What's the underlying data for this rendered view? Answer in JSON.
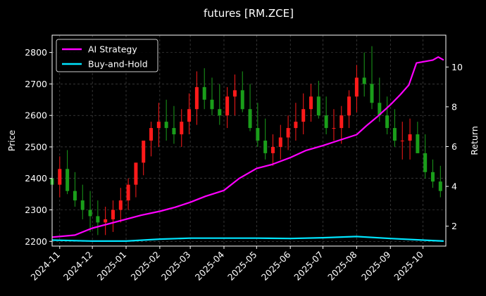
{
  "chart_data": {
    "type": "line",
    "title": "futures [RM.ZCE]",
    "xlabel": "",
    "ylabel_left": "Price",
    "ylabel_right": "Return",
    "xlim": [
      "2024-10-25",
      "2025-10-22"
    ],
    "ylim_left": [
      2185,
      2855
    ],
    "ylim_right": [
      1.0,
      11.6
    ],
    "grid": true,
    "legend_position": "top-left",
    "colors": {
      "background": "#000000",
      "ai_strategy": "#ff00ff",
      "buy_and_hold": "#00e5ff",
      "candle_up": "#ff1a1a",
      "candle_down": "#1a9e1a",
      "grid": "#555555"
    },
    "x_ticks": [
      "2024-11",
      "2024-12",
      "2025-01",
      "2025-02",
      "2025-03",
      "2025-04",
      "2025-05",
      "2025-06",
      "2025-07",
      "2025-08",
      "2025-09",
      "2025-10"
    ],
    "y_ticks_left": [
      2200,
      2300,
      2400,
      2500,
      2600,
      2700,
      2800
    ],
    "y_ticks_right": [
      2,
      4,
      6,
      8,
      10
    ],
    "legend": [
      "AI Strategy",
      "Buy-and-Hold"
    ],
    "price_candles": {
      "x": [
        "2024-10-25",
        "2024-11-01",
        "2024-11-08",
        "2024-11-15",
        "2024-11-22",
        "2024-11-29",
        "2024-12-06",
        "2024-12-13",
        "2024-12-20",
        "2024-12-27",
        "2025-01-03",
        "2025-01-10",
        "2025-01-17",
        "2025-01-24",
        "2025-01-31",
        "2025-02-07",
        "2025-02-14",
        "2025-02-21",
        "2025-02-28",
        "2025-03-07",
        "2025-03-14",
        "2025-03-21",
        "2025-03-28",
        "2025-04-04",
        "2025-04-11",
        "2025-04-18",
        "2025-04-25",
        "2025-05-02",
        "2025-05-09",
        "2025-05-16",
        "2025-05-23",
        "2025-05-30",
        "2025-06-06",
        "2025-06-13",
        "2025-06-20",
        "2025-06-27",
        "2025-07-04",
        "2025-07-11",
        "2025-07-18",
        "2025-07-25",
        "2025-08-01",
        "2025-08-08",
        "2025-08-15",
        "2025-08-22",
        "2025-08-29",
        "2025-09-05",
        "2025-09-12",
        "2025-09-19",
        "2025-09-26",
        "2025-10-03",
        "2025-10-10",
        "2025-10-17"
      ],
      "open": [
        2400,
        2380,
        2430,
        2360,
        2330,
        2300,
        2280,
        2260,
        2270,
        2300,
        2330,
        2380,
        2450,
        2520,
        2560,
        2580,
        2560,
        2540,
        2580,
        2620,
        2690,
        2650,
        2620,
        2600,
        2660,
        2680,
        2620,
        2560,
        2520,
        2480,
        2500,
        2530,
        2560,
        2580,
        2620,
        2660,
        2600,
        2560,
        2560,
        2600,
        2660,
        2720,
        2700,
        2640,
        2600,
        2560,
        2520,
        2520,
        2540,
        2480,
        2420,
        2390
      ],
      "high": [
        2450,
        2470,
        2490,
        2420,
        2380,
        2360,
        2330,
        2310,
        2330,
        2370,
        2400,
        2450,
        2520,
        2580,
        2640,
        2650,
        2630,
        2620,
        2670,
        2740,
        2750,
        2720,
        2700,
        2690,
        2730,
        2740,
        2700,
        2640,
        2590,
        2540,
        2570,
        2600,
        2640,
        2670,
        2700,
        2710,
        2660,
        2620,
        2630,
        2680,
        2760,
        2800,
        2820,
        2720,
        2660,
        2620,
        2580,
        2590,
        2580,
        2540,
        2460,
        2440
      ],
      "low": [
        2360,
        2340,
        2350,
        2310,
        2270,
        2230,
        2220,
        2220,
        2230,
        2260,
        2300,
        2340,
        2410,
        2470,
        2500,
        2520,
        2510,
        2500,
        2540,
        2570,
        2620,
        2600,
        2570,
        2560,
        2600,
        2610,
        2550,
        2500,
        2460,
        2440,
        2460,
        2490,
        2520,
        2540,
        2580,
        2590,
        2540,
        2520,
        2510,
        2560,
        2610,
        2660,
        2620,
        2580,
        2540,
        2500,
        2460,
        2460,
        2480,
        2400,
        2370,
        2340
      ],
      "close": [
        2380,
        2430,
        2360,
        2330,
        2300,
        2280,
        2260,
        2270,
        2300,
        2330,
        2380,
        2450,
        2520,
        2560,
        2580,
        2560,
        2540,
        2580,
        2620,
        2690,
        2650,
        2620,
        2600,
        2660,
        2680,
        2620,
        2560,
        2520,
        2480,
        2500,
        2530,
        2560,
        2580,
        2620,
        2660,
        2600,
        2560,
        2560,
        2600,
        2660,
        2720,
        2700,
        2640,
        2600,
        2560,
        2520,
        2520,
        2540,
        2480,
        2420,
        2390,
        2360
      ]
    },
    "series": [
      {
        "name": "AI Strategy",
        "x": [
          "2024-10-25",
          "2024-11-15",
          "2024-12-01",
          "2025-01-01",
          "2025-01-15",
          "2025-02-01",
          "2025-02-15",
          "2025-03-01",
          "2025-03-15",
          "2025-04-01",
          "2025-04-15",
          "2025-05-01",
          "2025-05-15",
          "2025-06-01",
          "2025-06-15",
          "2025-07-01",
          "2025-07-15",
          "2025-08-01",
          "2025-08-10",
          "2025-08-20",
          "2025-09-01",
          "2025-09-10",
          "2025-09-18",
          "2025-09-25",
          "2025-10-10",
          "2025-10-15",
          "2025-10-20"
        ],
        "values": [
          1.45,
          1.55,
          1.9,
          2.35,
          2.55,
          2.75,
          2.95,
          3.2,
          3.5,
          3.8,
          4.4,
          4.9,
          5.1,
          5.45,
          5.8,
          6.05,
          6.3,
          6.6,
          7.05,
          7.5,
          8.1,
          8.6,
          9.1,
          10.2,
          10.35,
          10.5,
          10.35
        ]
      },
      {
        "name": "Buy-and-Hold",
        "x": [
          "2024-10-25",
          "2024-12-01",
          "2025-01-01",
          "2025-02-01",
          "2025-03-01",
          "2025-04-01",
          "2025-05-01",
          "2025-06-01",
          "2025-07-01",
          "2025-08-01",
          "2025-09-01",
          "2025-10-01",
          "2025-10-20"
        ],
        "values": [
          1.3,
          1.25,
          1.25,
          1.35,
          1.4,
          1.4,
          1.4,
          1.38,
          1.42,
          1.48,
          1.38,
          1.3,
          1.25
        ]
      }
    ]
  }
}
